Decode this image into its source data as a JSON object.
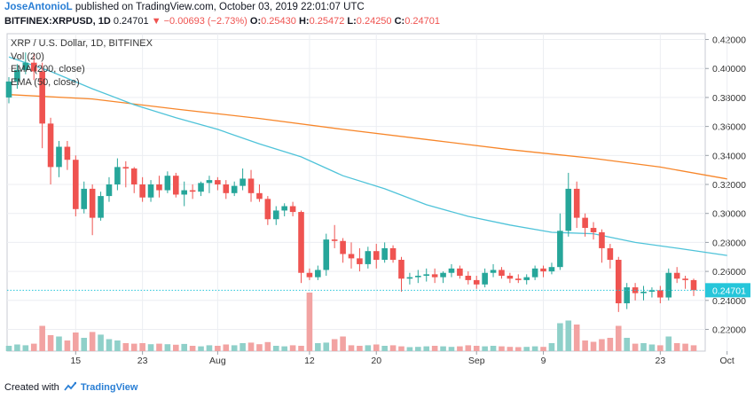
{
  "header": {
    "author": "JoseAntonioL",
    "published_text": "published on TradingView.com, October 03, 2019 22:01:07 UTC",
    "symbol": "BITFINEX:XRPUSD, 1D",
    "last": "0.24701",
    "change": "▼ −0.00693 (−2.73%)",
    "o_label": "O:",
    "o_value": "0.25430",
    "h_label": "H:",
    "h_value": "0.25472",
    "l_label": "L:",
    "l_value": "0.24250",
    "c_label": "C:",
    "c_value": "0.24701"
  },
  "legend": {
    "title": "XRP / U.S. Dollar, 1D, BITFINEX",
    "vol": "Vol (20)",
    "ema200": "EMA (200, close)",
    "ema50": "EMA (50, close)"
  },
  "footer": {
    "created_with": "Created with",
    "brand": "TradingView"
  },
  "colors": {
    "up": "#26a69a",
    "down": "#ef5350",
    "vol_up": "#8fd0c9",
    "vol_down": "#f2a3a2",
    "ema200": "#f7862a",
    "ema50": "#4fc3d9",
    "last_price": "#26c6da"
  },
  "chart_data": {
    "type": "candlestick",
    "ylim": [
      0.205,
      0.424
    ],
    "y_ticks": [
      "0.42000",
      "0.40000",
      "0.38000",
      "0.36000",
      "0.34000",
      "0.32000",
      "0.30000",
      "0.28000",
      "0.26000",
      "0.24000",
      "0.22000"
    ],
    "x_ticks": [
      {
        "label": "15",
        "index": 8
      },
      {
        "label": "23",
        "index": 16
      },
      {
        "label": "Aug",
        "index": 25
      },
      {
        "label": "12",
        "index": 36
      },
      {
        "label": "20",
        "index": 44
      },
      {
        "label": "Sep",
        "index": 56
      },
      {
        "label": "9",
        "index": 64
      },
      {
        "label": "23",
        "index": 78
      },
      {
        "label": "Oct",
        "index": 86
      }
    ],
    "last_price_label": "0.24701",
    "last_price": 0.24701,
    "ohlc": [
      [
        0.38,
        0.394,
        0.376,
        0.391
      ],
      [
        0.391,
        0.403,
        0.386,
        0.399
      ],
      [
        0.399,
        0.411,
        0.396,
        0.404
      ],
      [
        0.404,
        0.41,
        0.392,
        0.398
      ],
      [
        0.398,
        0.404,
        0.345,
        0.362
      ],
      [
        0.362,
        0.366,
        0.32,
        0.332
      ],
      [
        0.332,
        0.35,
        0.325,
        0.346
      ],
      [
        0.346,
        0.35,
        0.33,
        0.337
      ],
      [
        0.337,
        0.34,
        0.298,
        0.303
      ],
      [
        0.303,
        0.322,
        0.3,
        0.317
      ],
      [
        0.317,
        0.32,
        0.285,
        0.297
      ],
      [
        0.297,
        0.315,
        0.295,
        0.312
      ],
      [
        0.312,
        0.325,
        0.308,
        0.32
      ],
      [
        0.32,
        0.338,
        0.316,
        0.332
      ],
      [
        0.332,
        0.336,
        0.318,
        0.331
      ],
      [
        0.331,
        0.332,
        0.314,
        0.32
      ],
      [
        0.32,
        0.325,
        0.308,
        0.311
      ],
      [
        0.311,
        0.323,
        0.308,
        0.32
      ],
      [
        0.32,
        0.326,
        0.311,
        0.316
      ],
      [
        0.316,
        0.329,
        0.314,
        0.326
      ],
      [
        0.326,
        0.328,
        0.311,
        0.313
      ],
      [
        0.313,
        0.322,
        0.305,
        0.316
      ],
      [
        0.316,
        0.32,
        0.31,
        0.315
      ],
      [
        0.315,
        0.322,
        0.312,
        0.321
      ],
      [
        0.321,
        0.326,
        0.314,
        0.323
      ],
      [
        0.323,
        0.325,
        0.316,
        0.32
      ],
      [
        0.32,
        0.323,
        0.31,
        0.314
      ],
      [
        0.314,
        0.322,
        0.312,
        0.319
      ],
      [
        0.319,
        0.331,
        0.316,
        0.324
      ],
      [
        0.324,
        0.33,
        0.308,
        0.314
      ],
      [
        0.314,
        0.32,
        0.308,
        0.31
      ],
      [
        0.31,
        0.312,
        0.292,
        0.296
      ],
      [
        0.296,
        0.305,
        0.292,
        0.302
      ],
      [
        0.302,
        0.307,
        0.298,
        0.305
      ],
      [
        0.305,
        0.308,
        0.298,
        0.301
      ],
      [
        0.301,
        0.302,
        0.252,
        0.259
      ],
      [
        0.259,
        0.262,
        0.254,
        0.256
      ],
      [
        0.256,
        0.264,
        0.254,
        0.261
      ],
      [
        0.261,
        0.286,
        0.257,
        0.282
      ],
      [
        0.282,
        0.292,
        0.276,
        0.281
      ],
      [
        0.281,
        0.283,
        0.266,
        0.272
      ],
      [
        0.272,
        0.28,
        0.262,
        0.269
      ],
      [
        0.269,
        0.276,
        0.26,
        0.265
      ],
      [
        0.265,
        0.277,
        0.262,
        0.274
      ],
      [
        0.274,
        0.279,
        0.262,
        0.268
      ],
      [
        0.268,
        0.28,
        0.266,
        0.276
      ],
      [
        0.276,
        0.278,
        0.266,
        0.268
      ],
      [
        0.268,
        0.27,
        0.246,
        0.255
      ],
      [
        0.255,
        0.259,
        0.251,
        0.256
      ],
      [
        0.256,
        0.261,
        0.252,
        0.257
      ],
      [
        0.257,
        0.262,
        0.253,
        0.258
      ],
      [
        0.258,
        0.262,
        0.252,
        0.256
      ],
      [
        0.256,
        0.26,
        0.252,
        0.259
      ],
      [
        0.259,
        0.265,
        0.256,
        0.262
      ],
      [
        0.262,
        0.264,
        0.255,
        0.257
      ],
      [
        0.257,
        0.26,
        0.251,
        0.254
      ],
      [
        0.254,
        0.257,
        0.248,
        0.251
      ],
      [
        0.251,
        0.262,
        0.249,
        0.259
      ],
      [
        0.259,
        0.265,
        0.256,
        0.261
      ],
      [
        0.261,
        0.263,
        0.255,
        0.257
      ],
      [
        0.257,
        0.259,
        0.252,
        0.255
      ],
      [
        0.255,
        0.258,
        0.252,
        0.254
      ],
      [
        0.254,
        0.258,
        0.251,
        0.256
      ],
      [
        0.256,
        0.264,
        0.254,
        0.262
      ],
      [
        0.262,
        0.264,
        0.256,
        0.26
      ],
      [
        0.26,
        0.266,
        0.258,
        0.263
      ],
      [
        0.263,
        0.3,
        0.261,
        0.288
      ],
      [
        0.288,
        0.328,
        0.284,
        0.317
      ],
      [
        0.317,
        0.322,
        0.29,
        0.297
      ],
      [
        0.297,
        0.3,
        0.284,
        0.29
      ],
      [
        0.29,
        0.294,
        0.282,
        0.287
      ],
      [
        0.287,
        0.289,
        0.266,
        0.276
      ],
      [
        0.276,
        0.279,
        0.262,
        0.268
      ],
      [
        0.268,
        0.27,
        0.232,
        0.238
      ],
      [
        0.238,
        0.252,
        0.234,
        0.249
      ],
      [
        0.249,
        0.252,
        0.24,
        0.245
      ],
      [
        0.245,
        0.25,
        0.24,
        0.246
      ],
      [
        0.246,
        0.249,
        0.242,
        0.247
      ],
      [
        0.247,
        0.25,
        0.238,
        0.242
      ],
      [
        0.242,
        0.262,
        0.24,
        0.259
      ],
      [
        0.259,
        0.263,
        0.252,
        0.255
      ],
      [
        0.255,
        0.257,
        0.248,
        0.254
      ],
      [
        0.254,
        0.255,
        0.243,
        0.247
      ]
    ],
    "volume": [
      0.2,
      0.25,
      0.22,
      0.28,
      0.95,
      0.6,
      0.55,
      0.4,
      0.7,
      0.5,
      0.72,
      0.62,
      0.45,
      0.4,
      0.3,
      0.28,
      0.3,
      0.26,
      0.28,
      0.26,
      0.24,
      0.27,
      0.2,
      0.18,
      0.22,
      0.2,
      0.25,
      0.22,
      0.3,
      0.32,
      0.26,
      0.34,
      0.2,
      0.18,
      0.22,
      0.2,
      2.2,
      0.3,
      0.32,
      0.45,
      0.55,
      0.22,
      0.2,
      0.22,
      0.25,
      0.2,
      0.22,
      0.18,
      0.15,
      0.16,
      0.18,
      0.2,
      0.18,
      0.16,
      0.18,
      0.22,
      0.2,
      0.18,
      0.2,
      0.18,
      0.16,
      0.15,
      0.16,
      0.18,
      0.16,
      0.3,
      1.05,
      1.15,
      1.0,
      0.4,
      0.35,
      0.45,
      0.5,
      0.95,
      0.5,
      0.28,
      0.3,
      0.25,
      0.22,
      0.55,
      0.3,
      0.28,
      0.22
    ],
    "ema200": [
      {
        "i": 0,
        "v": 0.382
      },
      {
        "i": 10,
        "v": 0.379
      },
      {
        "i": 20,
        "v": 0.372
      },
      {
        "i": 30,
        "v": 0.3655
      },
      {
        "i": 40,
        "v": 0.358
      },
      {
        "i": 50,
        "v": 0.351
      },
      {
        "i": 60,
        "v": 0.344
      },
      {
        "i": 70,
        "v": 0.338
      },
      {
        "i": 78,
        "v": 0.332
      },
      {
        "i": 86,
        "v": 0.3238
      }
    ],
    "ema50": [
      {
        "i": 0,
        "v": 0.408
      },
      {
        "i": 5,
        "v": 0.398
      },
      {
        "i": 10,
        "v": 0.386
      },
      {
        "i": 15,
        "v": 0.375
      },
      {
        "i": 20,
        "v": 0.366
      },
      {
        "i": 25,
        "v": 0.358
      },
      {
        "i": 30,
        "v": 0.348
      },
      {
        "i": 35,
        "v": 0.339
      },
      {
        "i": 40,
        "v": 0.326
      },
      {
        "i": 45,
        "v": 0.317
      },
      {
        "i": 50,
        "v": 0.306
      },
      {
        "i": 55,
        "v": 0.298
      },
      {
        "i": 60,
        "v": 0.292
      },
      {
        "i": 65,
        "v": 0.287
      },
      {
        "i": 70,
        "v": 0.286
      },
      {
        "i": 75,
        "v": 0.28
      },
      {
        "i": 80,
        "v": 0.276
      },
      {
        "i": 86,
        "v": 0.271
      }
    ]
  }
}
